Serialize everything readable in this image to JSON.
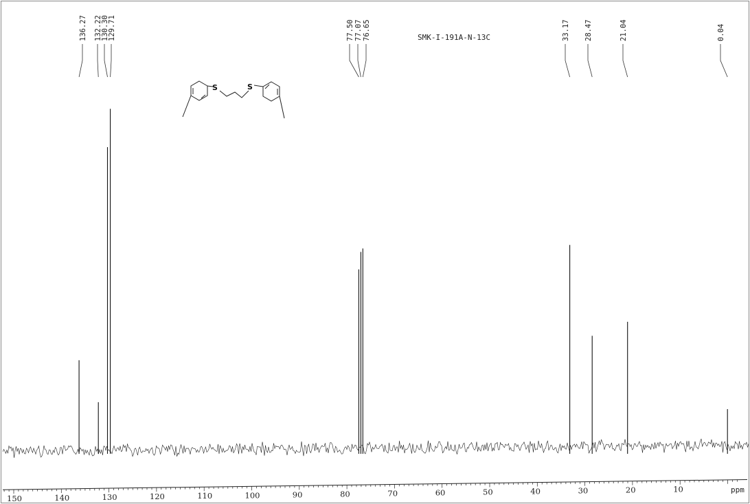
{
  "chart_data": {
    "type": "line",
    "title": "SMK-I-191A-N-13C",
    "xlabel": "ppm",
    "ylabel": "",
    "xlim": [
      153,
      -3
    ],
    "x_reversed": true,
    "x_ticks": [
      150,
      140,
      130,
      120,
      110,
      100,
      90,
      80,
      70,
      60,
      50,
      40,
      30,
      20,
      10
    ],
    "grid": false,
    "series": [
      {
        "peaks": [
          {
            "ppm": 136.27,
            "intensity": 0.26
          },
          {
            "ppm": 132.22,
            "intensity": 0.14
          },
          {
            "ppm": 130.3,
            "intensity": 0.87
          },
          {
            "ppm": 129.71,
            "intensity": 0.98
          },
          {
            "ppm": 77.5,
            "intensity": 0.52
          },
          {
            "ppm": 77.07,
            "intensity": 0.57
          },
          {
            "ppm": 76.65,
            "intensity": 0.58
          },
          {
            "ppm": 33.17,
            "intensity": 0.59
          },
          {
            "ppm": 28.47,
            "intensity": 0.33
          },
          {
            "ppm": 21.04,
            "intensity": 0.37
          },
          {
            "ppm": 0.04,
            "intensity": 0.12
          }
        ]
      }
    ],
    "peak_labels": [
      "136.27",
      "132.22",
      "130.30",
      "129.71",
      "77.50",
      "77.07",
      "76.65",
      "33.17",
      "28.47",
      "21.04",
      "0.04"
    ],
    "structure_atoms": [
      "S",
      "S"
    ]
  }
}
